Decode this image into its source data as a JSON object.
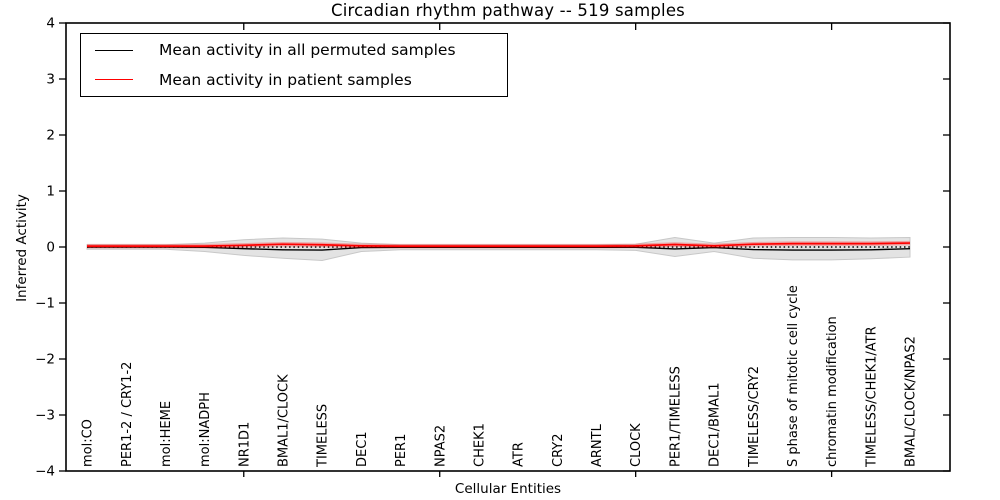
{
  "chart_data": {
    "type": "line",
    "title": "Circadian rhythm pathway -- 519 samples",
    "xlabel": "Cellular Entities",
    "ylabel": "Inferred Activity",
    "ylim": [
      -4,
      4
    ],
    "yticks": [
      4,
      3,
      2,
      1,
      0,
      -1,
      -2,
      -3,
      -4
    ],
    "ytick_labels": [
      "4",
      "3",
      "2",
      "1",
      "0",
      "−1",
      "−2",
      "−3",
      "−4"
    ],
    "xtick_major_indices": [
      4,
      9,
      14,
      19
    ],
    "grid": false,
    "legend_position": "upper-left",
    "categories": [
      "mol:CO",
      "PER1-2 / CRY1-2",
      "mol:HEME",
      "mol:NADPH",
      "NR1D1",
      "BMAL1/CLOCK",
      "TIMELESS",
      "DEC1",
      "PER1",
      "NPAS2",
      "CHEK1",
      "ATR",
      "CRY2",
      "ARNTL",
      "CLOCK",
      "PER1/TIMELESS",
      "DEC1/BMAL1",
      "TIMELESS/CRY2",
      "S phase of mitotic cell cycle",
      "chromatin modification",
      "TIMELESS/CHEK1/ATR",
      "BMAL/CLOCK/NPAS2"
    ],
    "series": [
      {
        "name": "Mean activity in all permuted samples",
        "color": "#000000",
        "values": [
          0.0,
          0.0,
          0.0,
          -0.005,
          -0.03,
          -0.05,
          -0.055,
          -0.01,
          -0.005,
          -0.005,
          -0.005,
          -0.005,
          -0.005,
          -0.005,
          -0.005,
          -0.035,
          -0.01,
          -0.045,
          -0.055,
          -0.055,
          -0.05,
          -0.03
        ]
      },
      {
        "name": "Mean activity in patient samples",
        "color": "#ff0000",
        "values": [
          0.015,
          0.015,
          0.015,
          0.015,
          0.03,
          0.05,
          0.04,
          0.02,
          0.015,
          0.015,
          0.015,
          0.015,
          0.015,
          0.015,
          0.02,
          0.045,
          0.02,
          0.05,
          0.06,
          0.06,
          0.06,
          0.07
        ]
      }
    ],
    "band": {
      "name": "permuted-samples-range",
      "fill": "#dcdcdc",
      "edge": "#c8c8c8",
      "upper": [
        0.04,
        0.04,
        0.04,
        0.07,
        0.13,
        0.16,
        0.14,
        0.07,
        0.04,
        0.04,
        0.04,
        0.04,
        0.04,
        0.04,
        0.05,
        0.17,
        0.07,
        0.16,
        0.17,
        0.17,
        0.16,
        0.17
      ],
      "lower": [
        -0.04,
        -0.04,
        -0.04,
        -0.08,
        -0.15,
        -0.2,
        -0.24,
        -0.08,
        -0.05,
        -0.05,
        -0.05,
        -0.05,
        -0.05,
        -0.05,
        -0.06,
        -0.17,
        -0.08,
        -0.2,
        -0.23,
        -0.23,
        -0.21,
        -0.18
      ]
    },
    "zero_line": {
      "value": 0,
      "style": "dotted",
      "color": "#000000"
    }
  },
  "colors": {
    "background": "#ffffff",
    "axes": "#000000",
    "patient_line": "#ff0000",
    "permuted_line": "#000000",
    "band_fill": "#dcdcdc"
  }
}
